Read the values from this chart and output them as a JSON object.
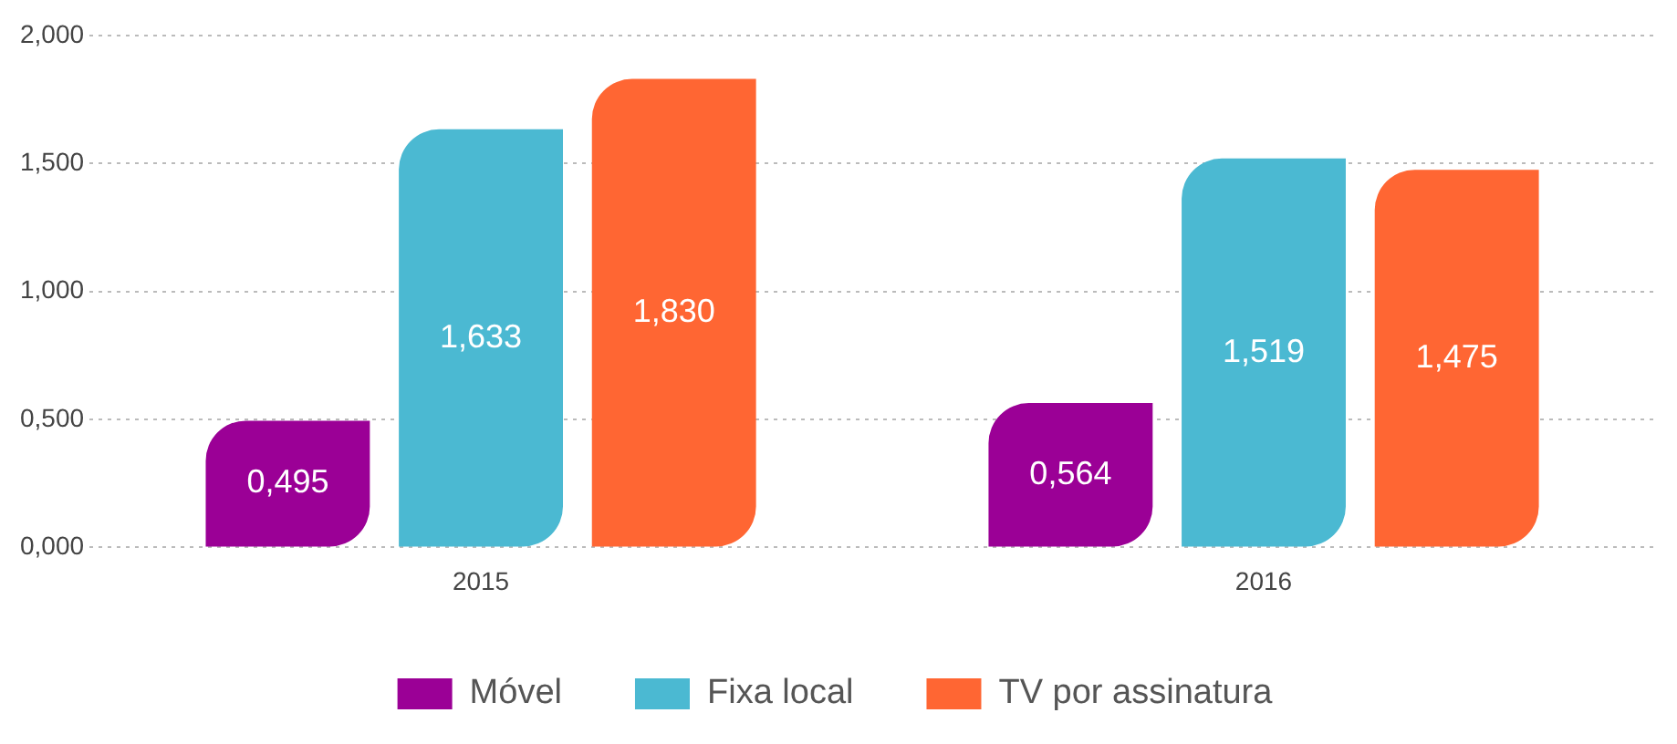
{
  "chart_data": {
    "type": "bar",
    "categories": [
      "2015",
      "2016"
    ],
    "series": [
      {
        "name": "Móvel",
        "color": "#9b0096",
        "values": [
          0.495,
          0.564
        ],
        "value_labels": [
          "0,495",
          "0,564"
        ]
      },
      {
        "name": "Fixa local",
        "color": "#4bb9d2",
        "values": [
          1.633,
          1.519
        ],
        "value_labels": [
          "1,633",
          "1,519"
        ]
      },
      {
        "name": "TV por assinatura",
        "color": "#ff6633",
        "values": [
          1.83,
          1.475
        ],
        "value_labels": [
          "1,830",
          "1,475"
        ]
      }
    ],
    "ylim": [
      0,
      2
    ],
    "yticks": [
      {
        "value": 0,
        "label": "0,000"
      },
      {
        "value": 0.5,
        "label": "0,500"
      },
      {
        "value": 1,
        "label": "1,000"
      },
      {
        "value": 1.5,
        "label": "1,500"
      },
      {
        "value": 2,
        "label": "2,000"
      }
    ],
    "grid": "y",
    "legend": "bottom"
  }
}
